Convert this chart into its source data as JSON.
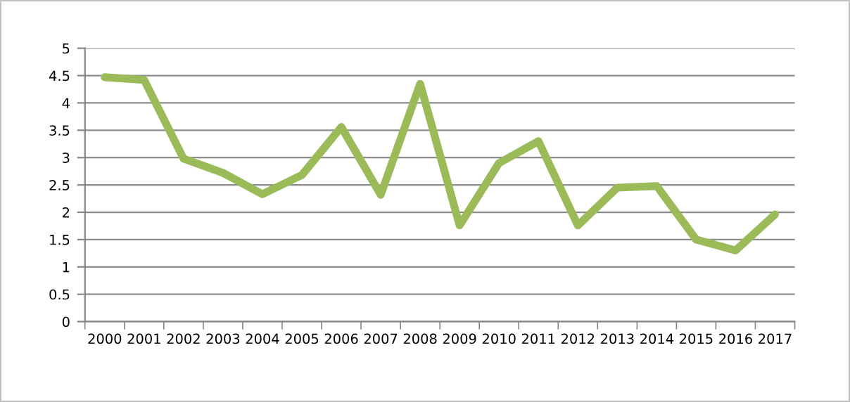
{
  "chart_data": {
    "type": "line",
    "categories": [
      "2000",
      "2001",
      "2002",
      "2003",
      "2004",
      "2005",
      "2006",
      "2007",
      "2008",
      "2009",
      "2010",
      "2011",
      "2012",
      "2013",
      "2014",
      "2015",
      "2016",
      "2017"
    ],
    "series": [
      {
        "color": "#9bbb59",
        "values": [
          4.47,
          4.42,
          2.98,
          2.72,
          2.33,
          2.68,
          3.56,
          2.32,
          4.35,
          1.76,
          2.9,
          3.3,
          1.76,
          2.45,
          2.48,
          1.5,
          1.3,
          1.96
        ]
      }
    ],
    "ylim": [
      0,
      5
    ],
    "yticks": [
      0,
      0.5,
      1,
      1.5,
      2,
      2.5,
      3,
      3.5,
      4,
      4.5,
      5
    ],
    "grid": "y"
  }
}
